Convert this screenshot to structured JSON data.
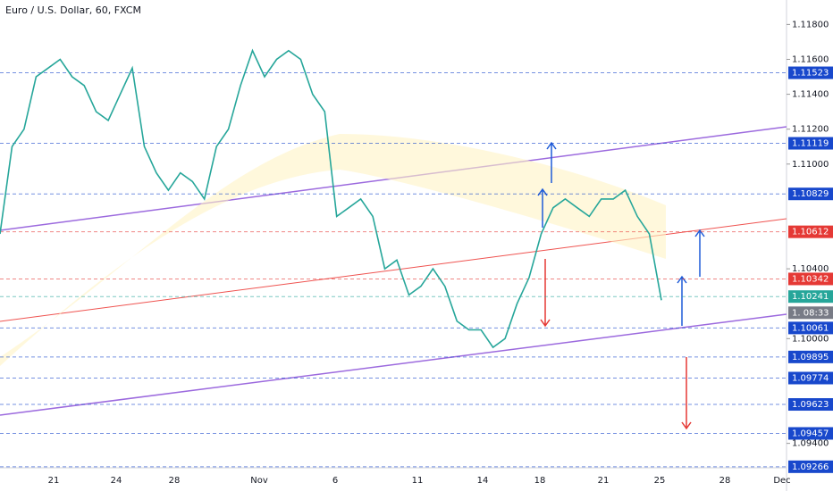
{
  "chart_data": {
    "type": "line",
    "title": "Euro / U.S. Dollar, 60, FXCM",
    "values": [
      1.106,
      1.111,
      1.112,
      1.115,
      1.1155,
      1.116,
      1.115,
      1.1145,
      1.113,
      1.1125,
      1.114,
      1.1155,
      1.111,
      1.1095,
      1.1085,
      1.1095,
      1.109,
      1.108,
      1.111,
      1.112,
      1.1145,
      1.1165,
      1.115,
      1.116,
      1.1165,
      1.116,
      1.114,
      1.113,
      1.107,
      1.1075,
      1.108,
      1.107,
      1.104,
      1.1045,
      1.1025,
      1.103,
      1.104,
      1.103,
      1.101,
      1.1005,
      1.1005,
      1.0995,
      1.1,
      1.102,
      1.1035,
      1.106,
      1.1075,
      1.108,
      1.1075,
      1.107,
      1.108,
      1.108,
      1.1085,
      1.107,
      1.106,
      1.1022
    ],
    "color": "#26a69a",
    "ylim": [
      1.0926,
      1.1194
    ],
    "yticks": [
      {
        "value": 1.118,
        "label": "1.11800"
      },
      {
        "value": 1.116,
        "label": "1.11600"
      },
      {
        "value": 1.114,
        "label": "1.11400"
      },
      {
        "value": 1.112,
        "label": "1.11200"
      },
      {
        "value": 1.11,
        "label": "1.11000"
      },
      {
        "value": 1.104,
        "label": "1.10400"
      },
      {
        "value": 1.1,
        "label": "1.10000"
      },
      {
        "value": 1.094,
        "label": "1.09400"
      }
    ],
    "xticks": [
      "21",
      "24",
      "28",
      "Nov",
      "6",
      "11",
      "14",
      "18",
      "21",
      "25",
      "28",
      "Dec"
    ],
    "levels": [
      {
        "value": 1.11523,
        "color": "#1848cc"
      },
      {
        "value": 1.11119,
        "color": "#1848cc"
      },
      {
        "value": 1.10829,
        "color": "#1848cc"
      },
      {
        "value": 1.10612,
        "color": "#e53935"
      },
      {
        "value": 1.10342,
        "color": "#e53935"
      },
      {
        "value": 1.10241,
        "color": "#26a69a"
      },
      {
        "value": 1.10061,
        "color": "#1848cc"
      },
      {
        "value": 1.09895,
        "color": "#1848cc"
      },
      {
        "value": 1.09774,
        "color": "#1848cc"
      },
      {
        "value": 1.09623,
        "color": "#1848cc"
      },
      {
        "value": 1.09457,
        "color": "#1848cc"
      },
      {
        "value": 1.09266,
        "color": "#1848cc"
      }
    ],
    "countdown_label": "1. 08:33"
  }
}
